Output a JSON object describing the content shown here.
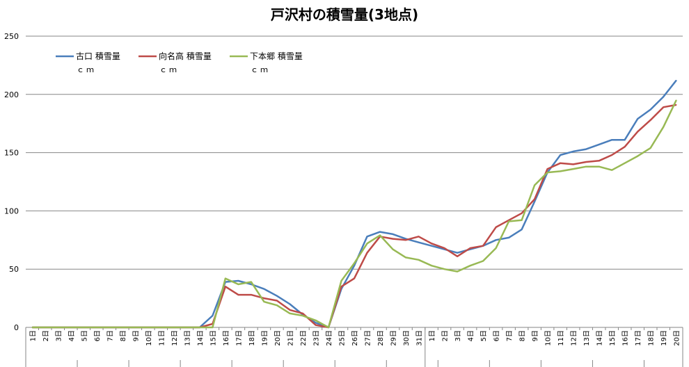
{
  "chart_data": {
    "type": "line",
    "title": "戸沢村の積雪量(3地点)",
    "xlabel": "",
    "ylabel": "",
    "ylim": [
      0,
      250
    ],
    "yticks": [
      0,
      50,
      100,
      150,
      200,
      250
    ],
    "grid": true,
    "legend_position": "top-left",
    "categories": [
      "1日",
      "2日",
      "3日",
      "4日",
      "5日",
      "6日",
      "7日",
      "8日",
      "9日",
      "10日",
      "11日",
      "12日",
      "13日",
      "14日",
      "15日",
      "16日",
      "17日",
      "18日",
      "19日",
      "20日",
      "21日",
      "22日",
      "23日",
      "24日",
      "25日",
      "26日",
      "27日",
      "28日",
      "29日",
      "30日",
      "31日",
      "1日",
      "2日",
      "3日",
      "4日",
      "5日",
      "6日",
      "7日",
      "8日",
      "9日",
      "10日",
      "11日",
      "12日",
      "13日",
      "14日",
      "15日",
      "16日",
      "17日",
      "18日",
      "19日",
      "20日"
    ],
    "series": [
      {
        "name": "古口 積雪量",
        "unit": "ｃｍ",
        "color": "#4a7ebb",
        "values": [
          0,
          0,
          0,
          0,
          0,
          0,
          0,
          0,
          0,
          0,
          0,
          0,
          0,
          0,
          10,
          39,
          40,
          37,
          33,
          27,
          20,
          11,
          4,
          0,
          33,
          53,
          78,
          82,
          80,
          76,
          73,
          70,
          67,
          64,
          67,
          70,
          75,
          77,
          84,
          108,
          133,
          148,
          151,
          153,
          157,
          161,
          161,
          179,
          187,
          198,
          212
        ]
      },
      {
        "name": "向名高 積雪量",
        "unit": "ｃｍ",
        "color": "#be4b48",
        "values": [
          0,
          0,
          0,
          0,
          0,
          0,
          0,
          0,
          0,
          0,
          0,
          0,
          0,
          0,
          3,
          35,
          28,
          28,
          25,
          23,
          15,
          12,
          2,
          0,
          35,
          42,
          64,
          78,
          76,
          75,
          78,
          72,
          68,
          61,
          68,
          70,
          86,
          92,
          98,
          110,
          136,
          141,
          140,
          142,
          143,
          148,
          155,
          168,
          178,
          189,
          191
        ]
      },
      {
        "name": "下本郷 積雪量",
        "unit": "ｃｍ",
        "color": "#98b954",
        "values": [
          0,
          0,
          0,
          0,
          0,
          0,
          0,
          0,
          0,
          0,
          0,
          0,
          0,
          0,
          0,
          42,
          37,
          39,
          22,
          19,
          12,
          10,
          6,
          0,
          40,
          55,
          72,
          79,
          67,
          60,
          58,
          53,
          50,
          48,
          53,
          57,
          68,
          91,
          92,
          122,
          133,
          134,
          136,
          138,
          138,
          135,
          141,
          147,
          154,
          172,
          195
        ]
      }
    ]
  }
}
